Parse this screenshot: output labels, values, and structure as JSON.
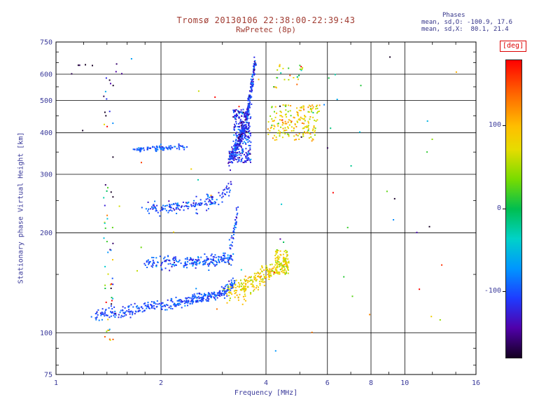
{
  "header": {
    "title": "Tromsø 20130106 22:38:00-22:39:43",
    "subtitle": "RwPretec (8p)",
    "stats_title": "Phases",
    "stats_o": "mean, sd,O: -100.9, 17.6",
    "stats_x": "mean, sd,X:  80.1, 21.4"
  },
  "colors": {
    "title_text": "#a03a30",
    "axis_text": "#3a3a9a",
    "stats_text": "#333388",
    "deg_label": "#dd0000",
    "grid": "#000000"
  },
  "chart_data": {
    "type": "scatter",
    "title": "Tromsø 20130106 22:38:00-22:39:43",
    "subtitle": "RwPretec (8p)",
    "xlabel": "Frequency [MHz]",
    "ylabel": "Stationary phase Virtual Height [km]",
    "x_scale": "log",
    "y_scale": "log",
    "x_range": [
      1,
      16
    ],
    "y_range": [
      75,
      750
    ],
    "x_ticks": [
      1,
      2,
      4,
      6,
      8,
      10,
      16
    ],
    "x_grid": [
      2,
      4,
      6,
      8,
      10
    ],
    "x_minor": [
      1.2,
      1.4,
      1.6,
      1.8,
      3,
      5,
      7,
      9,
      12,
      14
    ],
    "y_ticks": [
      75,
      100,
      200,
      300,
      400,
      500,
      600,
      750
    ],
    "y_grid": [
      100,
      200,
      300,
      400,
      500,
      600
    ],
    "y_minor": [
      80,
      90,
      150,
      250,
      350,
      450,
      550,
      650,
      700
    ],
    "grid": true,
    "colorbar": {
      "label": "[deg]",
      "ticks": [
        100,
        0,
        -100
      ],
      "range": [
        -180,
        180
      ],
      "stops": [
        {
          "v": -180,
          "c": "#140020"
        },
        {
          "v": -144,
          "c": "#5000aa"
        },
        {
          "v": -108,
          "c": "#1e3cff"
        },
        {
          "v": -72,
          "c": "#0096ff"
        },
        {
          "v": -36,
          "c": "#00d2c8"
        },
        {
          "v": 0,
          "c": "#00be50"
        },
        {
          "v": 36,
          "c": "#78dc00"
        },
        {
          "v": 72,
          "c": "#e6dc00"
        },
        {
          "v": 100,
          "c": "#ffbe00"
        },
        {
          "v": 140,
          "c": "#ff6400"
        },
        {
          "v": 180,
          "c": "#ff0000"
        }
      ]
    },
    "phase_stats": {
      "O_mean": -100.9,
      "O_sd": 17.6,
      "X_mean": 80.1,
      "X_sd": 21.4
    },
    "clusters": [
      {
        "name": "E-trace-O-mode",
        "kind": "trace",
        "path": [
          [
            1.28,
            112
          ],
          [
            1.5,
            115
          ],
          [
            1.8,
            119
          ],
          [
            2.2,
            123
          ],
          [
            2.6,
            127
          ],
          [
            3.0,
            132
          ],
          [
            3.25,
            140
          ]
        ],
        "n": 380,
        "hspread": 2.5,
        "phase": [
          -102,
          15
        ]
      },
      {
        "name": "E-trace-X-mode",
        "kind": "trace",
        "path": [
          [
            3.0,
            131
          ],
          [
            3.3,
            136
          ],
          [
            3.6,
            143
          ],
          [
            3.9,
            150
          ],
          [
            4.3,
            158
          ],
          [
            4.6,
            163
          ]
        ],
        "n": 160,
        "hspread": 4,
        "phase": [
          82,
          22
        ]
      },
      {
        "name": "band-165km-O",
        "kind": "trace",
        "path": [
          [
            1.8,
            162
          ],
          [
            2.4,
            163
          ],
          [
            2.9,
            165
          ],
          [
            3.2,
            169
          ]
        ],
        "n": 220,
        "hspread": 3.5,
        "phase": [
          -100,
          18
        ]
      },
      {
        "name": "band-165km-rise",
        "kind": "trace",
        "path": [
          [
            3.15,
            178
          ],
          [
            3.25,
            205
          ],
          [
            3.32,
            232
          ]
        ],
        "n": 35,
        "hspread": 6,
        "phase": [
          -105,
          20
        ]
      },
      {
        "name": "band-240km-O",
        "kind": "trace",
        "path": [
          [
            1.75,
            236
          ],
          [
            2.2,
            239
          ],
          [
            2.6,
            244
          ],
          [
            2.9,
            252
          ],
          [
            3.1,
            268
          ],
          [
            3.2,
            282
          ]
        ],
        "n": 170,
        "hspread": 5,
        "phase": [
          -103,
          18
        ]
      },
      {
        "name": "band-360km-O",
        "kind": "trace",
        "path": [
          [
            1.68,
            356
          ],
          [
            2.0,
            360
          ],
          [
            2.35,
            362
          ]
        ],
        "n": 90,
        "hspread": 3,
        "phase": [
          -96,
          14
        ]
      },
      {
        "name": "F-trace-asymptote",
        "kind": "trace",
        "path": [
          [
            3.12,
            328
          ],
          [
            3.25,
            352
          ],
          [
            3.38,
            385
          ],
          [
            3.5,
            430
          ],
          [
            3.58,
            490
          ],
          [
            3.65,
            560
          ],
          [
            3.7,
            625
          ],
          [
            3.73,
            660
          ]
        ],
        "n": 320,
        "hspread": 10,
        "phase": [
          -112,
          22
        ]
      },
      {
        "name": "F-region-blob",
        "kind": "blob",
        "f": [
          3.22,
          3.62
        ],
        "h": [
          325,
          470
        ],
        "n": 260,
        "phase": [
          -112,
          25
        ]
      },
      {
        "name": "X-mode-upper",
        "kind": "blob",
        "f": [
          4.05,
          5.7
        ],
        "h": [
          378,
          485
        ],
        "n": 190,
        "phase": [
          78,
          30
        ]
      },
      {
        "name": "X-mode-top-sparse",
        "kind": "blob",
        "f": [
          4.2,
          5.1
        ],
        "h": [
          545,
          645
        ],
        "n": 26,
        "phase": [
          60,
          45
        ]
      },
      {
        "name": "green-cluster-low",
        "kind": "blob",
        "f": [
          4.25,
          4.65
        ],
        "h": [
          150,
          178
        ],
        "n": 95,
        "phase": [
          72,
          18
        ]
      },
      {
        "name": "yellow-arc-low",
        "kind": "trace",
        "path": [
          [
            3.3,
            127
          ],
          [
            3.6,
            134
          ],
          [
            3.9,
            144
          ],
          [
            4.15,
            153
          ]
        ],
        "n": 55,
        "hspread": 4,
        "phase": [
          85,
          18
        ]
      },
      {
        "name": "interference-column",
        "kind": "blob",
        "f": [
          1.37,
          1.46
        ],
        "h": [
          95,
          640
        ],
        "n": 55,
        "phase": [
          0,
          130
        ],
        "logh": true
      },
      {
        "name": "sparse-scatter",
        "kind": "blob",
        "f": [
          1.1,
          14.5
        ],
        "h": [
          85,
          680
        ],
        "n": 60,
        "phase": [
          0,
          130
        ],
        "logf": true,
        "logh": true
      },
      {
        "name": "dark-top-left",
        "kind": "blob",
        "f": [
          1.1,
          1.6
        ],
        "h": [
          580,
          650
        ],
        "n": 8,
        "phase": [
          -165,
          10
        ]
      }
    ]
  }
}
